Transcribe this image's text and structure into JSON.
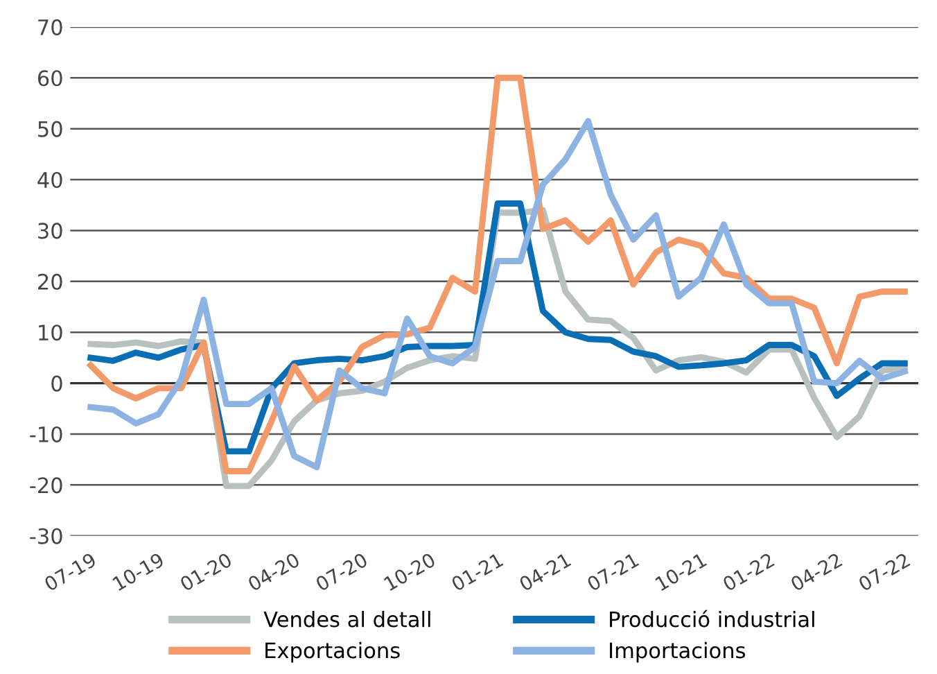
{
  "chart_data": {
    "type": "line",
    "categories": [
      "07-19",
      null,
      null,
      "10-19",
      null,
      null,
      "01-20",
      null,
      null,
      "04-20",
      null,
      null,
      "07-20",
      null,
      null,
      "10-20",
      null,
      null,
      "01-21",
      null,
      null,
      "04-21",
      null,
      null,
      "07-21",
      null,
      null,
      "10-21",
      null,
      null,
      "01-22",
      null,
      null,
      "04-22",
      null,
      null,
      "07-22"
    ],
    "series": [
      {
        "name": "Vendes al detall",
        "color": "#b8c0c0",
        "values": [
          7.7,
          7.5,
          8,
          7.3,
          8.2,
          8,
          -20.2,
          -20.2,
          -15.2,
          -7.5,
          -3.4,
          -2,
          -1.5,
          0.3,
          3,
          4.5,
          5.3,
          4.8,
          33.5,
          33.5,
          34,
          18,
          12.5,
          12.2,
          8.9,
          2.5,
          4.5,
          5.1,
          4.2,
          2.1,
          6.6,
          6.6,
          -2.9,
          -10.6,
          -6.5,
          2.5,
          3
        ]
      },
      {
        "name": "Producció industrial",
        "color": "#0a6eb4",
        "values": [
          5,
          4.4,
          6,
          5,
          6.6,
          7.5,
          -13.4,
          -13.4,
          -1,
          3.9,
          4.5,
          4.8,
          4.5,
          5.3,
          7.1,
          7.3,
          7.3,
          7.5,
          35.3,
          35.3,
          14.2,
          10,
          8.7,
          8.5,
          6.2,
          5.3,
          3.2,
          3.5,
          3.9,
          4.5,
          7.5,
          7.5,
          5.3,
          -2.5,
          0.9,
          3.9,
          3.9
        ]
      },
      {
        "name": "Exportacions",
        "color": "#f39a6b",
        "values": [
          3.5,
          -1,
          -3,
          -1,
          -1,
          8,
          -17.3,
          -17.3,
          -7.5,
          3.3,
          -3.4,
          0.3,
          7.1,
          9.4,
          9.6,
          10.9,
          20.7,
          18,
          60,
          60,
          30.3,
          32,
          27.8,
          32,
          19.4,
          25.7,
          28.2,
          27,
          21.6,
          20.7,
          16.6,
          16.6,
          14.8,
          3.9,
          17,
          18,
          18
        ]
      },
      {
        "name": "Importacions",
        "color": "#8db3e2",
        "values": [
          -4.7,
          -5.2,
          -7.9,
          -6.1,
          0.7,
          16.4,
          -4.1,
          -4.1,
          -1,
          -14.3,
          -16.5,
          2.5,
          -1,
          -2,
          12.7,
          5.3,
          3.9,
          7.1,
          24,
          24,
          39,
          44,
          51.5,
          37,
          28.2,
          33,
          17,
          20.7,
          31.2,
          19.4,
          15.7,
          15.7,
          0.3,
          0,
          4.4,
          0.9,
          2.3
        ]
      }
    ],
    "ylim": [
      -30,
      70
    ],
    "yticks": [
      -30,
      -20,
      -10,
      0,
      10,
      20,
      30,
      40,
      50,
      60,
      70
    ],
    "grid": "y",
    "legend": "bottom",
    "marker": "none",
    "line_style": "solid"
  }
}
